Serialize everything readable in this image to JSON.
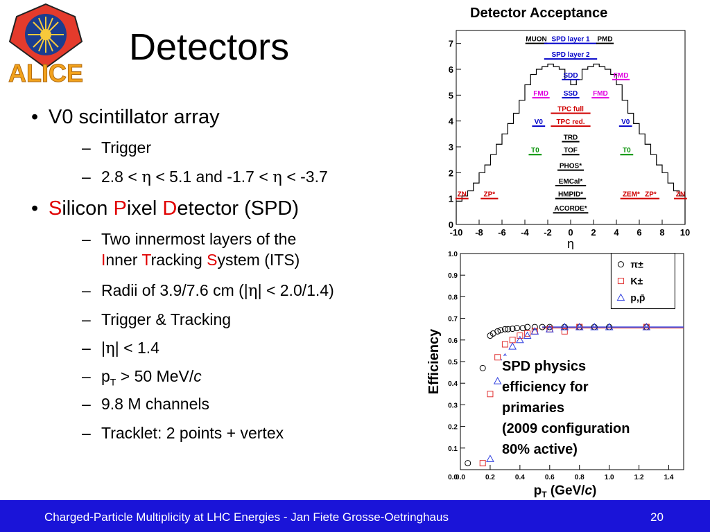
{
  "slide": {
    "title": "Detectors",
    "logo_text": "ALICE",
    "page_number": "20",
    "footer": "Charged-Particle Multiplicity at LHC Energies - Jan Fiete Grosse-Oetringhaus"
  },
  "bullets": {
    "v0": "V0 scintillator array",
    "v0_trigger": "Trigger",
    "v0_range": {
      "a": "2.8 < ",
      "eta1": "η",
      "b": " < 5.1 and -1.7 < ",
      "eta2": "η",
      "c": " < -3.7"
    },
    "spd": {
      "s": "S",
      "ilicon": "ilicon ",
      "p": "P",
      "ixel": "ixel ",
      "d": "D",
      "etector": "etector (SPD)"
    },
    "spd_sub1_line1": "Two innermost layers of the",
    "spd_sub1_line2": {
      "i": "I",
      "nner": "nner ",
      "t": "T",
      "racking": "racking ",
      "s": "S",
      "ystem": "ystem (ITS)"
    },
    "spd_sub2": {
      "a": "Radii of 3.9/7.6 cm (|",
      "eta": "η",
      "b": "| < 2.0/1.4)"
    },
    "spd_sub3": "Trigger & Tracking",
    "spd_sub4": {
      "a": "|",
      "eta": "η",
      "b": "| < 1.4"
    },
    "spd_sub5": {
      "p": "p",
      "sub": "T",
      "rest": " > 50 MeV/",
      "c": "c"
    },
    "spd_sub6": "9.8 M channels",
    "spd_sub7": "Tracklet: 2 points + vertex"
  },
  "colors": {
    "accent_red": "#e00000",
    "footer_blue": "#1a14d8",
    "black_det": "#000000",
    "blue_det": "#0000c8",
    "magenta_det": "#e000e0",
    "green_det": "#009000",
    "red_det": "#d00000"
  },
  "chart_data": [
    {
      "type": "line",
      "title": "Detector Acceptance",
      "xlabel": "η",
      "ylabel": "",
      "xlim": [
        -10,
        10
      ],
      "ylim": [
        0,
        7.5
      ],
      "xticks": [
        "-10",
        "-8",
        "-6",
        "-4",
        "-2",
        "0",
        "2",
        "4",
        "6",
        "8",
        "10"
      ],
      "yticks": [
        "0",
        "1",
        "2",
        "3",
        "4",
        "5",
        "6",
        "7"
      ],
      "detectors": [
        {
          "name": "MUON",
          "color": "black",
          "y": 7.0
        },
        {
          "name": "SPD layer 1",
          "color": "blue",
          "y": 7.0
        },
        {
          "name": "PMD",
          "color": "black",
          "y": 7.0
        },
        {
          "name": "SPD layer 2",
          "color": "blue",
          "y": 6.4
        },
        {
          "name": "SDD",
          "color": "blue",
          "y": 5.6
        },
        {
          "name": "FMD",
          "color": "magenta",
          "y": 5.6
        },
        {
          "name": "FMD",
          "color": "magenta",
          "y": 4.9
        },
        {
          "name": "SSD",
          "color": "blue",
          "y": 4.9
        },
        {
          "name": "FMD",
          "color": "magenta",
          "y": 4.9
        },
        {
          "name": "TPC full",
          "color": "red",
          "y": 4.3
        },
        {
          "name": "V0",
          "color": "blue",
          "y": 3.8
        },
        {
          "name": "TPC red.",
          "color": "red",
          "y": 3.8
        },
        {
          "name": "V0",
          "color": "blue",
          "y": 3.8
        },
        {
          "name": "TRD",
          "color": "black",
          "y": 3.2
        },
        {
          "name": "T0",
          "color": "green",
          "y": 2.7
        },
        {
          "name": "TOF",
          "color": "black",
          "y": 2.7
        },
        {
          "name": "T0",
          "color": "green",
          "y": 2.7
        },
        {
          "name": "PHOS*",
          "color": "black",
          "y": 2.1
        },
        {
          "name": "EMCal*",
          "color": "black",
          "y": 1.5
        },
        {
          "name": "ZN",
          "color": "red",
          "y": 1.0
        },
        {
          "name": "ZP*",
          "color": "red",
          "y": 1.0
        },
        {
          "name": "HMPID*",
          "color": "black",
          "y": 1.0
        },
        {
          "name": "ZEM*",
          "color": "red",
          "y": 1.0
        },
        {
          "name": "ZP*",
          "color": "red",
          "y": 1.0
        },
        {
          "name": "ZN",
          "color": "red",
          "y": 1.0
        },
        {
          "name": "ACORDE*",
          "color": "black",
          "y": 0.45
        }
      ],
      "acceptance": {
        "x": [
          -10,
          -9.5,
          -9,
          -8.5,
          -8,
          -7.5,
          -7,
          -6.5,
          -6,
          -5.5,
          -5,
          -4.5,
          -4,
          -3.5,
          -3,
          -2.5,
          -2,
          -1.5,
          -1,
          -0.5,
          0,
          0.5,
          1,
          1.5,
          2,
          2.5,
          3,
          3.5,
          4,
          4.5,
          5,
          5.5,
          6,
          6.5,
          7,
          7.5,
          8,
          8.5,
          9,
          9.5
        ],
        "y": [
          0.9,
          1.1,
          1.3,
          1.6,
          2.0,
          2.3,
          2.7,
          3.1,
          3.5,
          3.9,
          4.3,
          4.8,
          5.4,
          5.8,
          6.0,
          6.1,
          6.2,
          6.1,
          6.0,
          5.6,
          5.4,
          5.6,
          6.0,
          6.1,
          6.2,
          6.1,
          6.0,
          5.8,
          5.4,
          4.8,
          4.3,
          3.9,
          3.5,
          3.1,
          2.7,
          2.3,
          2.0,
          1.6,
          1.3,
          1.1
        ]
      }
    },
    {
      "type": "scatter",
      "title": "",
      "xlabel": "pT (GeV/c)",
      "xlabel_parts": {
        "p": "p",
        "sub": "T",
        "rest": " (GeV/",
        "c": "c",
        "end": ")"
      },
      "ylabel": "Efficiency",
      "xlim": [
        0,
        1.5
      ],
      "ylim": [
        0,
        1.0
      ],
      "xticks": [
        "0.0",
        "0.2",
        "0.4",
        "0.6",
        "0.8",
        "1.0",
        "1.2",
        "1.4"
      ],
      "yticks": [
        "0.1",
        "0.2",
        "0.3",
        "0.4",
        "0.5",
        "0.6",
        "0.7",
        "0.8",
        "0.9",
        "1.0"
      ],
      "plateau": 0.66,
      "legend": [
        "π±",
        "K±",
        "p,p̄"
      ],
      "annotation": [
        "SPD physics",
        "efficiency for",
        "primaries",
        "(2009 configuration",
        "80% active)"
      ],
      "series": [
        {
          "name": "π±",
          "marker": "circle",
          "color": "#000000",
          "x": [
            0.05,
            0.15,
            0.2,
            0.22,
            0.25,
            0.27,
            0.3,
            0.32,
            0.35,
            0.38,
            0.42,
            0.45,
            0.5,
            0.55,
            0.6,
            0.7,
            0.8,
            0.9,
            1.0,
            1.25
          ],
          "y": [
            0.03,
            0.47,
            0.62,
            0.63,
            0.64,
            0.645,
            0.65,
            0.65,
            0.652,
            0.655,
            0.655,
            0.66,
            0.66,
            0.66,
            0.66,
            0.66,
            0.66,
            0.66,
            0.66,
            0.66
          ]
        },
        {
          "name": "K±",
          "marker": "square",
          "color": "#e03030",
          "x": [
            0.15,
            0.2,
            0.25,
            0.3,
            0.35,
            0.4,
            0.45,
            0.5,
            0.6,
            0.7,
            0.8,
            1.25
          ],
          "y": [
            0.03,
            0.35,
            0.52,
            0.58,
            0.6,
            0.62,
            0.63,
            0.64,
            0.65,
            0.64,
            0.66,
            0.66
          ]
        },
        {
          "name": "p,p̄",
          "marker": "triangle",
          "color": "#3040e0",
          "x": [
            0.2,
            0.25,
            0.3,
            0.35,
            0.4,
            0.45,
            0.5,
            0.6,
            0.7,
            0.8,
            0.9,
            1.0,
            1.25
          ],
          "y": [
            0.05,
            0.41,
            0.52,
            0.57,
            0.6,
            0.62,
            0.64,
            0.65,
            0.66,
            0.66,
            0.66,
            0.66,
            0.66
          ]
        }
      ]
    }
  ]
}
